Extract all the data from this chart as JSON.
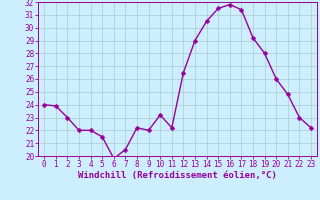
{
  "x": [
    0,
    1,
    2,
    3,
    4,
    5,
    6,
    7,
    8,
    9,
    10,
    11,
    12,
    13,
    14,
    15,
    16,
    17,
    18,
    19,
    20,
    21,
    22,
    23
  ],
  "y": [
    24,
    23.9,
    23,
    22,
    22,
    21.5,
    19.8,
    20.5,
    22.2,
    22,
    23.2,
    22.2,
    26.5,
    29,
    30.5,
    31.5,
    31.8,
    31.4,
    29.2,
    28,
    26,
    24.8,
    23,
    22.2
  ],
  "line_color": "#990099",
  "marker_color": "#990099",
  "bg_color": "#cceeff",
  "grid_color": "#aacccc",
  "xlabel": "Windchill (Refroidissement éolien,°C)",
  "ylim": [
    20,
    32
  ],
  "xlim": [
    -0.5,
    23.5
  ],
  "yticks": [
    20,
    21,
    22,
    23,
    24,
    25,
    26,
    27,
    28,
    29,
    30,
    31,
    32
  ],
  "xticks": [
    0,
    1,
    2,
    3,
    4,
    5,
    6,
    7,
    8,
    9,
    10,
    11,
    12,
    13,
    14,
    15,
    16,
    17,
    18,
    19,
    20,
    21,
    22,
    23
  ],
  "tick_label_fontsize": 5.5,
  "xlabel_fontsize": 6.5,
  "line_width": 1.0,
  "marker_size": 2.5
}
